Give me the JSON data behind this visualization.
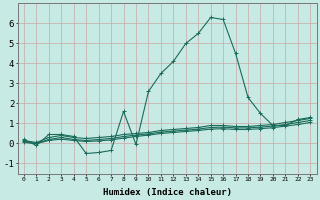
{
  "xlabel": "Humidex (Indice chaleur)",
  "background_color": "#c8eae4",
  "grid_color": "#b0c8c4",
  "line_color": "#1a6b5a",
  "xlim": [
    -0.5,
    23.5
  ],
  "ylim": [
    -1.5,
    7.0
  ],
  "yticks": [
    -1,
    0,
    1,
    2,
    3,
    4,
    5,
    6
  ],
  "series": [
    {
      "x": [
        0,
        1,
        2,
        3,
        4,
        5,
        6,
        7,
        8,
        9,
        10,
        11,
        12,
        13,
        14,
        15,
        16,
        17,
        18,
        19,
        20,
        21,
        22,
        23
      ],
      "y": [
        0.2,
        -0.1,
        0.45,
        0.45,
        0.35,
        -0.5,
        -0.45,
        -0.35,
        1.6,
        -0.05,
        2.6,
        3.5,
        4.1,
        5.0,
        5.5,
        6.3,
        6.2,
        4.5,
        2.3,
        1.5,
        0.9,
        0.9,
        1.2,
        1.3
      ]
    },
    {
      "x": [
        0,
        1,
        2,
        3,
        4,
        5,
        6,
        7,
        8,
        9,
        10,
        11,
        12,
        13,
        14,
        15,
        16,
        17,
        18,
        19,
        20,
        21,
        22,
        23
      ],
      "y": [
        0.15,
        0.05,
        0.3,
        0.4,
        0.3,
        0.25,
        0.3,
        0.35,
        0.45,
        0.5,
        0.55,
        0.65,
        0.7,
        0.75,
        0.8,
        0.9,
        0.9,
        0.85,
        0.85,
        0.9,
        0.95,
        1.05,
        1.15,
        1.25
      ]
    },
    {
      "x": [
        0,
        1,
        2,
        3,
        4,
        5,
        6,
        7,
        8,
        9,
        10,
        11,
        12,
        13,
        14,
        15,
        16,
        17,
        18,
        19,
        20,
        21,
        22,
        23
      ],
      "y": [
        0.1,
        0.0,
        0.2,
        0.3,
        0.2,
        0.15,
        0.2,
        0.25,
        0.35,
        0.42,
        0.48,
        0.57,
        0.62,
        0.67,
        0.72,
        0.8,
        0.82,
        0.78,
        0.78,
        0.82,
        0.87,
        0.95,
        1.05,
        1.15
      ]
    },
    {
      "x": [
        0,
        1,
        2,
        3,
        4,
        5,
        6,
        7,
        8,
        9,
        10,
        11,
        12,
        13,
        14,
        15,
        16,
        17,
        18,
        19,
        20,
        21,
        22,
        23
      ],
      "y": [
        0.05,
        0.0,
        0.15,
        0.22,
        0.15,
        0.1,
        0.13,
        0.18,
        0.27,
        0.35,
        0.42,
        0.5,
        0.55,
        0.6,
        0.65,
        0.72,
        0.74,
        0.7,
        0.7,
        0.74,
        0.79,
        0.87,
        0.95,
        1.05
      ]
    }
  ]
}
